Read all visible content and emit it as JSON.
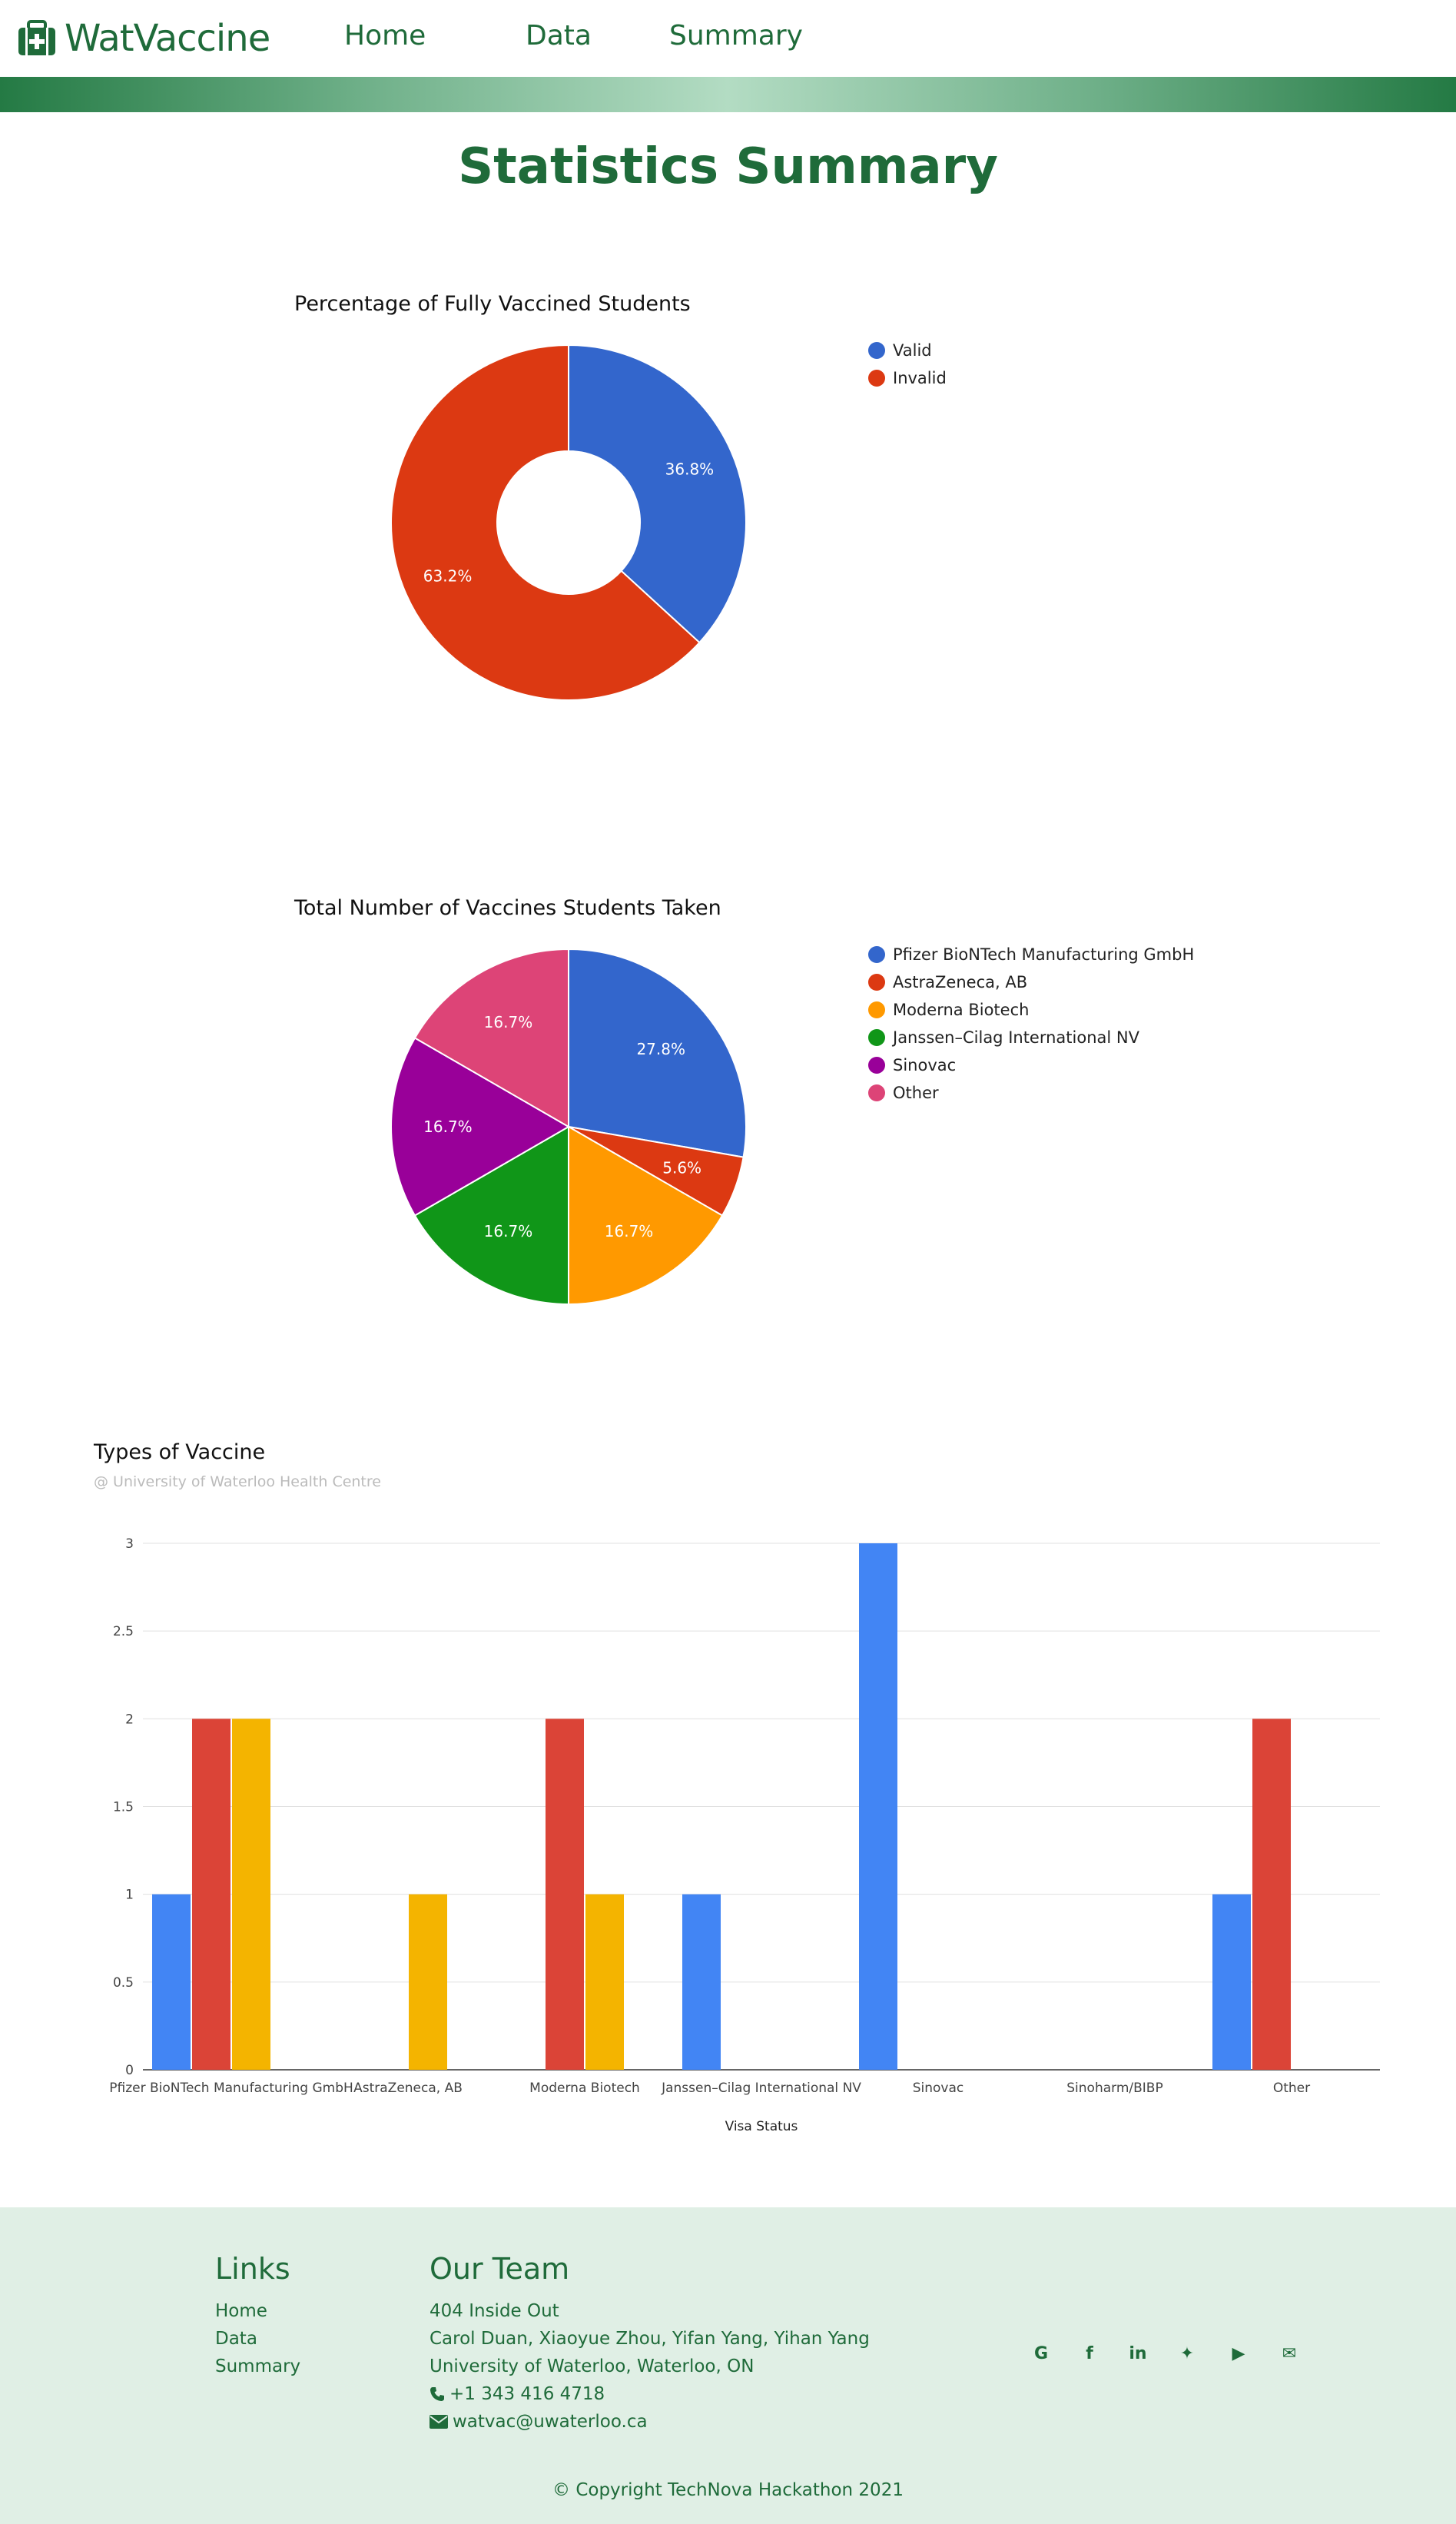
{
  "header": {
    "brand": "WatVaccine",
    "nav": [
      {
        "label": "Home"
      },
      {
        "label": "Data"
      },
      {
        "label": "Summary"
      }
    ]
  },
  "page_title": "Statistics Summary",
  "colors": {
    "brand_green": "#1f6b3a",
    "footer_bg": "#e0efe5"
  },
  "chart_data": [
    {
      "type": "pie",
      "variant": "donut",
      "title": "Percentage of Fully Vaccined Students",
      "legend_position": "right",
      "categories": [
        "Valid",
        "Invalid"
      ],
      "values": [
        36.8,
        63.2
      ],
      "labels": [
        "36.8%",
        "63.2%"
      ],
      "colors": [
        "#3366cc",
        "#dc3912"
      ]
    },
    {
      "type": "pie",
      "title": "Total Number of Vaccines Students Taken",
      "legend_position": "right",
      "categories": [
        "Pfizer BioNTech Manufacturing GmbH",
        "AstraZeneca, AB",
        "Moderna Biotech",
        "Janssen–Cilag International NV",
        "Sinovac",
        "Other"
      ],
      "values": [
        27.8,
        5.6,
        16.7,
        16.7,
        16.7,
        16.7
      ],
      "labels": [
        "27.8%",
        "5.6%",
        "16.7%",
        "16.7%",
        "16.7%",
        "16.7%"
      ],
      "colors": [
        "#3366cc",
        "#dc3912",
        "#ff9900",
        "#109618",
        "#990099",
        "#dd4477"
      ]
    },
    {
      "type": "bar",
      "title": "Types of Vaccine",
      "subtitle": "@ University of Waterloo Health Centre",
      "xlabel": "Visa Status",
      "ylabel": "",
      "ylim": [
        0,
        3
      ],
      "yticks": [
        "0",
        "0.5",
        "1",
        "1.5",
        "2",
        "2.5",
        "3"
      ],
      "ytick_values": [
        0,
        0.5,
        1,
        1.5,
        2,
        2.5,
        3
      ],
      "grid": true,
      "legend": "none",
      "categories": [
        "Pfizer BioNTech Manufacturing GmbH",
        "AstraZeneca, AB",
        "Moderna Biotech",
        "Janssen–Cilag International NV",
        "Sinovac",
        "Sinoharm/BIBP",
        "Other"
      ],
      "series": [
        {
          "values": [
            1,
            0,
            0,
            1,
            3,
            0,
            1
          ],
          "color": "#4285f4"
        },
        {
          "values": [
            2,
            0,
            2,
            0,
            0,
            0,
            2
          ],
          "color": "#db4437"
        },
        {
          "values": [
            2,
            1,
            1,
            0,
            0,
            0,
            0
          ],
          "color": "#f4b400"
        }
      ]
    }
  ],
  "footer": {
    "links_heading": "Links",
    "links": [
      {
        "label": "Home"
      },
      {
        "label": "Data"
      },
      {
        "label": "Summary"
      }
    ],
    "team_heading": "Our Team",
    "team_lines": [
      "404 Inside Out",
      "Carol Duan, Xiaoyue Zhou, Yifan Yang, Yihan Yang",
      "University of Waterloo, Waterloo, ON"
    ],
    "phone": "+1 343 416 4718",
    "email": "watvac@uwaterloo.ca",
    "social": [
      {
        "icon": "google-icon",
        "glyph": "G"
      },
      {
        "icon": "facebook-icon",
        "glyph": "f"
      },
      {
        "icon": "linkedin-icon",
        "glyph": "in"
      },
      {
        "icon": "twitter-icon",
        "glyph": "✦"
      },
      {
        "icon": "youtube-icon",
        "glyph": "▶"
      },
      {
        "icon": "envelope-icon",
        "glyph": "✉"
      }
    ],
    "copyright": "© Copyright TechNova Hackathon 2021"
  }
}
